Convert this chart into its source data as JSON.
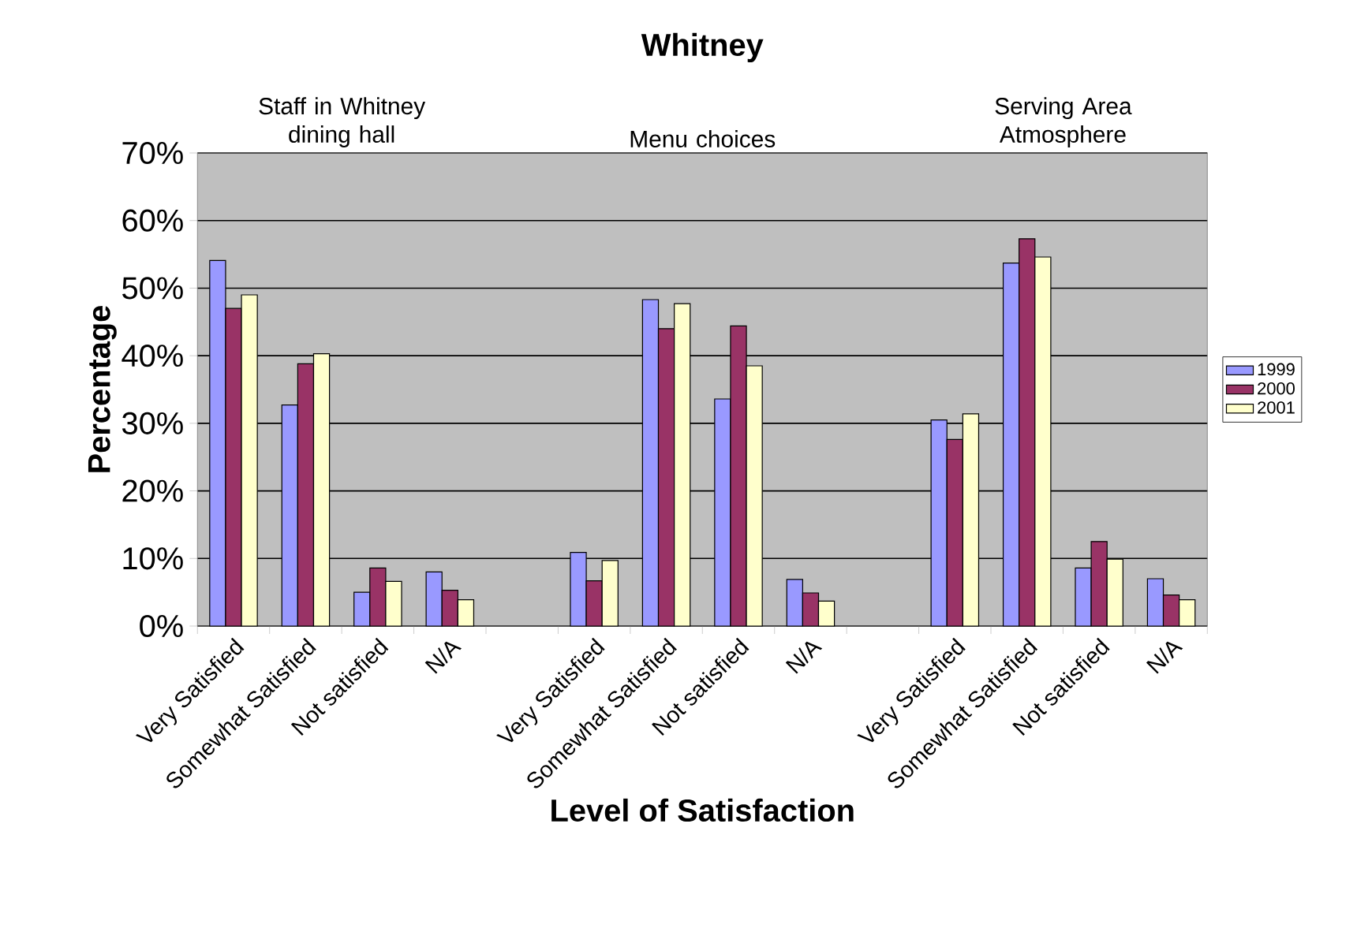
{
  "chart_data": {
    "type": "bar",
    "title": "Whitney",
    "xlabel": "Level of Satisfaction",
    "ylabel": "Percentage",
    "annotations": [
      "Staff in Whitney dining hall",
      "Menu choices",
      "Serving Area Atmosphere"
    ],
    "categories": [
      "Very Satisfied",
      "Somewhat Satisfied",
      "Not satisfied",
      "N/A",
      null,
      "Very Satisfied",
      "Somewhat Satisfied",
      "Not satisfied",
      "N/A",
      null,
      "Very Satisfied",
      "Somewhat Satisfied",
      "Not satisfied",
      "N/A"
    ],
    "series": [
      {
        "name": "1999",
        "color": "#9999ff",
        "values": [
          54.1,
          32.7,
          5.0,
          8.0,
          null,
          10.9,
          48.3,
          33.6,
          6.9,
          null,
          30.5,
          53.7,
          8.6,
          7.0
        ]
      },
      {
        "name": "2000",
        "color": "#993366",
        "values": [
          47.0,
          38.8,
          8.6,
          5.3,
          null,
          6.7,
          44.0,
          44.4,
          4.9,
          null,
          27.6,
          57.3,
          12.5,
          4.6
        ]
      },
      {
        "name": "2001",
        "color": "#ffffcc",
        "values": [
          49.0,
          40.3,
          6.6,
          3.9,
          null,
          9.7,
          47.7,
          38.5,
          3.7,
          null,
          31.4,
          54.6,
          9.9,
          3.9
        ]
      }
    ],
    "ylim": [
      0,
      70
    ],
    "yticks": [
      {
        "value": 0,
        "label": "0%"
      },
      {
        "value": 10,
        "label": "10%"
      },
      {
        "value": 20,
        "label": "20%"
      },
      {
        "value": 30,
        "label": "30%"
      },
      {
        "value": 40,
        "label": "40%"
      },
      {
        "value": 50,
        "label": "50%"
      },
      {
        "value": 60,
        "label": "60%"
      },
      {
        "value": 70,
        "label": "70%"
      }
    ],
    "grid": "y",
    "legend": "right"
  }
}
